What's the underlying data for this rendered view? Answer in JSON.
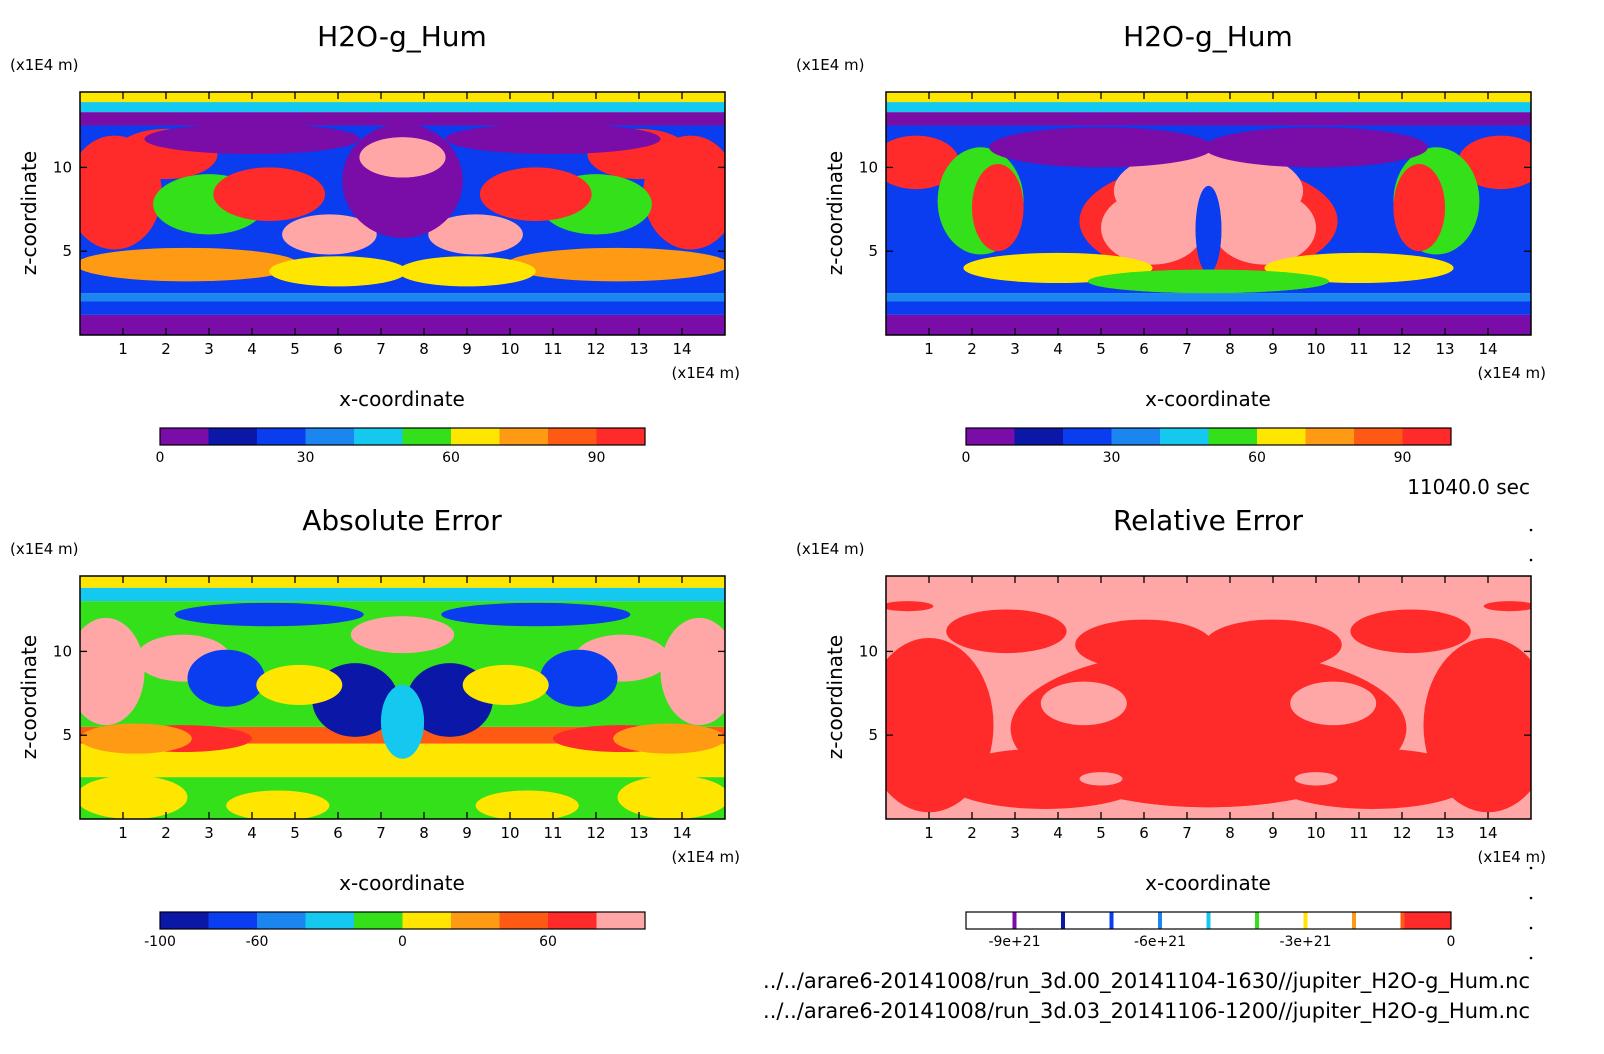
{
  "colors": {
    "purple": "#7a0ca8",
    "navy": "#0b17a6",
    "blue": "#0a3cf0",
    "azure": "#1c86f0",
    "cyan": "#14c8f0",
    "green": "#33e01a",
    "yellow": "#ffe600",
    "orange": "#ff9a14",
    "orangered": "#ff5a14",
    "red": "#ff2a2a",
    "pink": "#ffa6a6"
  },
  "time_stamp": "11040.0 sec",
  "files": [
    "../../arare6-20141008/run_3d.00_20141104-1630//jupiter_H2O-g_Hum.nc",
    "../../arare6-20141008/run_3d.03_20141106-1200//jupiter_H2O-g_Hum.nc"
  ],
  "chart_data": [
    {
      "type": "heatmap",
      "title": "H2O-g_Hum",
      "xlabel": "x-coordinate",
      "ylabel": "z-coordinate",
      "x_unit": "(x1E4 m)",
      "y_unit": "(x1E4 m)",
      "xlim": [
        0,
        15
      ],
      "ylim": [
        0,
        14.5
      ],
      "x_ticks": [
        "1",
        "2",
        "3",
        "4",
        "5",
        "6",
        "7",
        "8",
        "9",
        "10",
        "11",
        "12",
        "13",
        "14"
      ],
      "y_ticks": [
        "5",
        "10"
      ],
      "colorbar": {
        "colors": [
          "#7a0ca8",
          "#0b17a6",
          "#0a3cf0",
          "#1c86f0",
          "#14c8f0",
          "#33e01a",
          "#ffe600",
          "#ff9a14",
          "#ff5a14",
          "#ff2a2a"
        ],
        "labels": [
          "0",
          "30",
          "60",
          "90"
        ],
        "label_values": [
          0,
          30,
          60,
          90
        ],
        "range": [
          0,
          100
        ]
      }
    },
    {
      "type": "heatmap",
      "title": "H2O-g_Hum",
      "xlabel": "x-coordinate",
      "ylabel": "z-coordinate",
      "x_unit": "(x1E4 m)",
      "y_unit": "(x1E4 m)",
      "xlim": [
        0,
        15
      ],
      "ylim": [
        0,
        14.5
      ],
      "x_ticks": [
        "1",
        "2",
        "3",
        "4",
        "5",
        "6",
        "7",
        "8",
        "9",
        "10",
        "11",
        "12",
        "13",
        "14"
      ],
      "y_ticks": [
        "5",
        "10"
      ],
      "colorbar": {
        "colors": [
          "#7a0ca8",
          "#0b17a6",
          "#0a3cf0",
          "#1c86f0",
          "#14c8f0",
          "#33e01a",
          "#ffe600",
          "#ff9a14",
          "#ff5a14",
          "#ff2a2a"
        ],
        "labels": [
          "0",
          "30",
          "60",
          "90"
        ],
        "label_values": [
          0,
          30,
          60,
          90
        ],
        "range": [
          0,
          100
        ]
      }
    },
    {
      "type": "heatmap",
      "title": "Absolute Error",
      "xlabel": "x-coordinate",
      "ylabel": "z-coordinate",
      "x_unit": "(x1E4 m)",
      "y_unit": "(x1E4 m)",
      "xlim": [
        0,
        15
      ],
      "ylim": [
        0,
        14.5
      ],
      "x_ticks": [
        "1",
        "2",
        "3",
        "4",
        "5",
        "6",
        "7",
        "8",
        "9",
        "10",
        "11",
        "12",
        "13",
        "14"
      ],
      "y_ticks": [
        "5",
        "10"
      ],
      "colorbar": {
        "colors": [
          "#0b17a6",
          "#0a3cf0",
          "#1c86f0",
          "#14c8f0",
          "#33e01a",
          "#ffe600",
          "#ff9a14",
          "#ff5a14",
          "#ff2a2a",
          "#ffa6a6"
        ],
        "labels": [
          "-100",
          "-60",
          "0",
          "60"
        ],
        "label_values": [
          -100,
          -60,
          0,
          60
        ],
        "range": [
          -100,
          100
        ]
      }
    },
    {
      "type": "heatmap",
      "title": "Relative Error",
      "xlabel": "x-coordinate",
      "ylabel": "z-coordinate",
      "x_unit": "(x1E4 m)",
      "y_unit": "(x1E4 m)",
      "xlim": [
        0,
        15
      ],
      "ylim": [
        0,
        14.5
      ],
      "x_ticks": [
        "1",
        "2",
        "3",
        "4",
        "5",
        "6",
        "7",
        "8",
        "9",
        "10",
        "11",
        "12",
        "13",
        "14"
      ],
      "y_ticks": [
        "5",
        "10"
      ],
      "colorbar": {
        "colors": [
          "#ffffff",
          "#ffffff",
          "#ffffff",
          "#ffffff",
          "#ffffff",
          "#ffffff",
          "#ffffff",
          "#ffffff",
          "#ffffff",
          "#ff2a2a"
        ],
        "separator_colors": [
          "#7a0ca8",
          "#0b17a6",
          "#0a3cf0",
          "#1c86f0",
          "#14c8f0",
          "#33e01a",
          "#ffe600",
          "#ff9a14",
          "#ff5a14"
        ],
        "labels": [
          "-9e+21",
          "-6e+21",
          "-3e+21",
          "0"
        ],
        "label_values": [
          -9,
          -6,
          -3,
          0
        ],
        "range": [
          -10,
          0
        ]
      }
    }
  ]
}
